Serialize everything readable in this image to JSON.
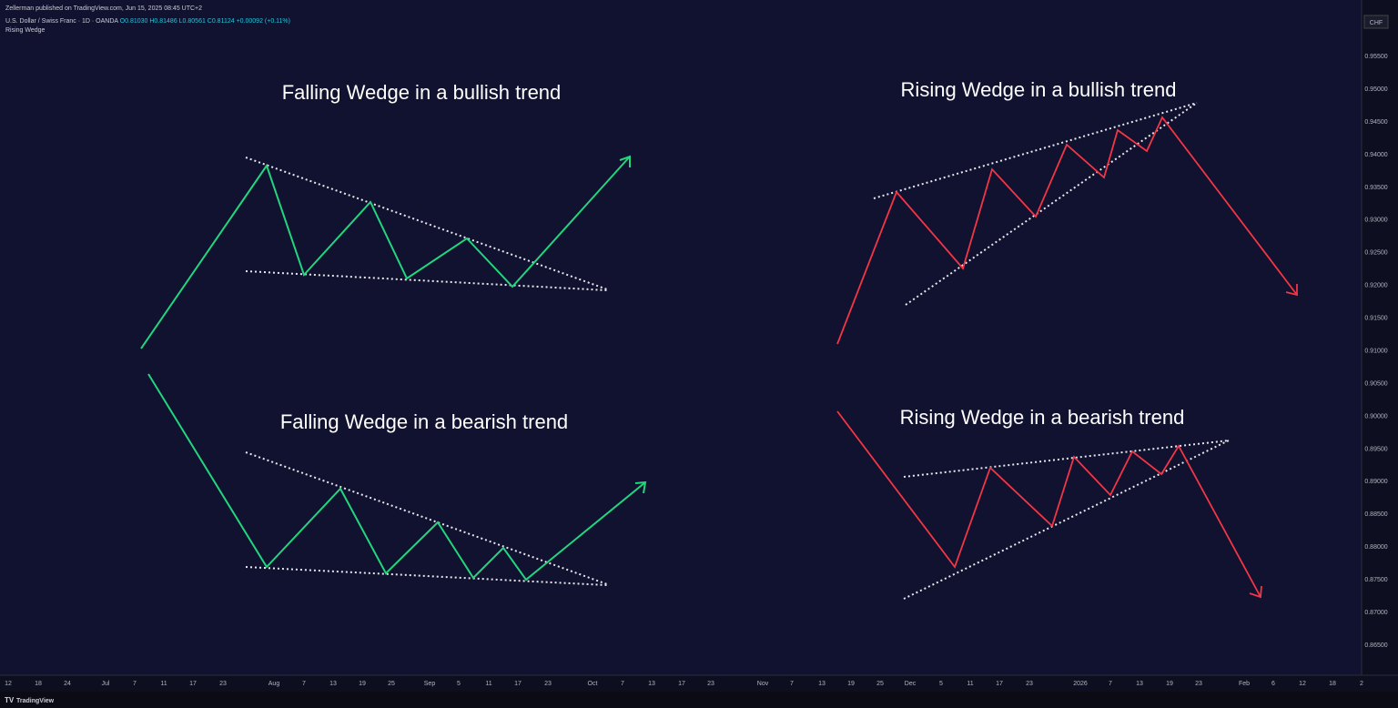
{
  "header": {
    "published": "Zellerman published on TradingView.com, Jun 15, 2025 08:45 UTC+2",
    "symbol": "U.S. Dollar / Swiss Franc · 1D · OANDA",
    "ohlc": "O0.81030 H0.81486 L0.80561 C0.81124 +0.00092 (+0.11%)",
    "indicator": "Rising Wedge"
  },
  "currency": "CHF",
  "annotations": [
    "Falling Wedge in a bullish trend",
    "Rising Wedge in a bullish trend",
    "Falling Wedge in a bearish trend",
    "Rising Wedge in a bearish trend"
  ],
  "price_axis": [
    "0.95500",
    "0.95000",
    "0.94500",
    "0.94000",
    "0.93500",
    "0.93000",
    "0.92500",
    "0.92000",
    "0.91500",
    "0.91000",
    "0.90500",
    "0.90000",
    "0.89500",
    "0.89000",
    "0.88500",
    "0.88000",
    "0.87500",
    "0.87000",
    "0.86500"
  ],
  "time_axis": [
    "12",
    "18",
    "24",
    "Jul",
    "7",
    "11",
    "17",
    "23",
    "Aug",
    "7",
    "13",
    "19",
    "25",
    "Sep",
    "5",
    "11",
    "17",
    "23",
    "Oct",
    "7",
    "13",
    "17",
    "23",
    "Nov",
    "7",
    "13",
    "19",
    "25",
    "Dec",
    "5",
    "11",
    "17",
    "23",
    "2026",
    "7",
    "13",
    "19",
    "23",
    "Feb",
    "6",
    "12",
    "18",
    "2"
  ],
  "footer": {
    "brand": "TradingView"
  }
}
